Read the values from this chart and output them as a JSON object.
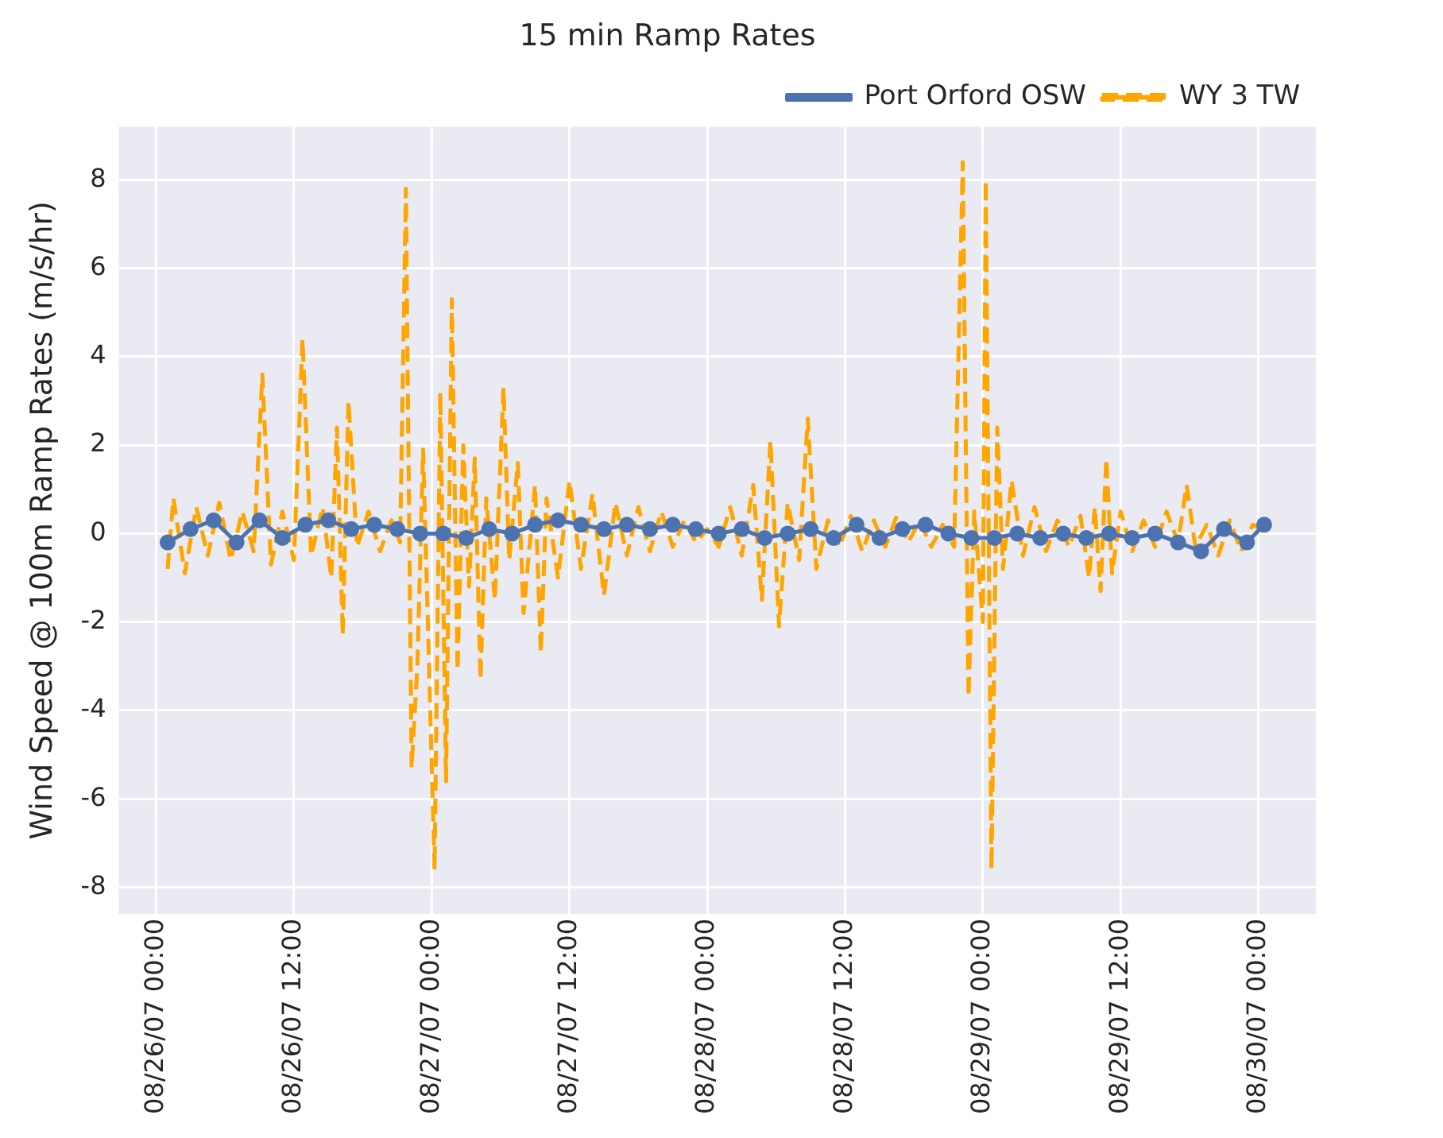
{
  "chart_data": {
    "type": "line",
    "title": "15 min Ramp Rates",
    "ylabel": "Wind Speed @ 100m Ramp Rates (m/s/hr)",
    "xlim": [
      "--08-25T20:45",
      "--08-30T05:00"
    ],
    "xticks": [
      {
        "value": "--08-26T00:00",
        "label": "08/26/07 00:00"
      },
      {
        "value": "--08-26T12:00",
        "label": "08/26/07 12:00"
      },
      {
        "value": "--08-27T00:00",
        "label": "08/27/07 00:00"
      },
      {
        "value": "--08-27T12:00",
        "label": "08/27/07 12:00"
      },
      {
        "value": "--08-28T00:00",
        "label": "08/28/07 00:00"
      },
      {
        "value": "--08-28T12:00",
        "label": "08/28/07 12:00"
      },
      {
        "value": "--08-29T00:00",
        "label": "08/29/07 00:00"
      },
      {
        "value": "--08-29T12:00",
        "label": "08/29/07 12:00"
      },
      {
        "value": "--08-30T00:00",
        "label": "08/30/07 00:00"
      }
    ],
    "ylim": [
      -8.6,
      9.2
    ],
    "yticks": [
      -8,
      -6,
      -4,
      -2,
      0,
      2,
      4,
      6,
      8
    ],
    "grid": true,
    "legend": "top right",
    "series": [
      {
        "name": "Port Orford OSW",
        "color": "#4c72b0",
        "marker": "circle",
        "line_style": "solid",
        "x": [
          "--08-26T01:00",
          "--08-26T03:00",
          "--08-26T05:00",
          "--08-26T07:00",
          "--08-26T09:00",
          "--08-26T11:00",
          "--08-26T13:00",
          "--08-26T15:00",
          "--08-26T17:00",
          "--08-26T19:00",
          "--08-26T21:00",
          "--08-26T23:00",
          "--08-27T01:00",
          "--08-27T03:00",
          "--08-27T05:00",
          "--08-27T07:00",
          "--08-27T09:00",
          "--08-27T11:00",
          "--08-27T13:00",
          "--08-27T15:00",
          "--08-27T17:00",
          "--08-27T19:00",
          "--08-27T21:00",
          "--08-27T23:00",
          "--08-28T01:00",
          "--08-28T03:00",
          "--08-28T05:00",
          "--08-28T07:00",
          "--08-28T09:00",
          "--08-28T11:00",
          "--08-28T13:00",
          "--08-28T15:00",
          "--08-28T17:00",
          "--08-28T19:00",
          "--08-28T21:00",
          "--08-28T23:00",
          "--08-29T01:00",
          "--08-29T03:00",
          "--08-29T05:00",
          "--08-29T07:00",
          "--08-29T09:00",
          "--08-29T11:00",
          "--08-29T13:00",
          "--08-29T15:00",
          "--08-29T17:00",
          "--08-29T19:00",
          "--08-29T21:00",
          "--08-29T23:00",
          "--08-30T00:30"
        ],
        "values": [
          -0.2,
          0.1,
          0.3,
          -0.2,
          0.3,
          -0.1,
          0.2,
          0.3,
          0.1,
          0.2,
          0.1,
          0.0,
          0.0,
          -0.1,
          0.1,
          0.0,
          0.2,
          0.3,
          0.2,
          0.1,
          0.2,
          0.1,
          0.2,
          0.1,
          0.0,
          0.1,
          -0.1,
          0.0,
          0.1,
          -0.1,
          0.2,
          -0.1,
          0.1,
          0.2,
          0.0,
          -0.1,
          -0.1,
          0.0,
          -0.1,
          0.0,
          -0.1,
          0.0,
          -0.1,
          0.0,
          -0.2,
          -0.4,
          0.1,
          -0.2,
          0.2
        ]
      },
      {
        "name": "WY 3 TW",
        "color": "#ffa500",
        "marker": "none",
        "line_style": "dashed",
        "x": [
          "--08-26T01:00",
          "--08-26T01:30",
          "--08-26T02:30",
          "--08-26T03:30",
          "--08-26T04:30",
          "--08-26T05:30",
          "--08-26T06:30",
          "--08-26T07:30",
          "--08-26T08:30",
          "--08-26T09:15",
          "--08-26T10:00",
          "--08-26T11:00",
          "--08-26T12:00",
          "--08-26T12:45",
          "--08-26T13:30",
          "--08-26T14:30",
          "--08-26T15:15",
          "--08-26T15:45",
          "--08-26T16:15",
          "--08-26T16:45",
          "--08-26T17:30",
          "--08-26T18:30",
          "--08-26T19:30",
          "--08-26T20:30",
          "--08-26T21:15",
          "--08-26T21:45",
          "--08-26T22:15",
          "--08-26T22:45",
          "--08-26T23:15",
          "--08-26T23:45",
          "--08-27T00:15",
          "--08-27T00:45",
          "--08-27T01:15",
          "--08-27T01:45",
          "--08-27T02:15",
          "--08-27T02:45",
          "--08-27T03:15",
          "--08-27T03:45",
          "--08-27T04:15",
          "--08-27T04:45",
          "--08-27T05:30",
          "--08-27T06:15",
          "--08-27T06:45",
          "--08-27T07:30",
          "--08-27T08:00",
          "--08-27T09:00",
          "--08-27T09:30",
          "--08-27T10:00",
          "--08-27T11:00",
          "--08-27T12:00",
          "--08-27T13:00",
          "--08-27T14:00",
          "--08-27T15:00",
          "--08-27T16:00",
          "--08-27T17:00",
          "--08-27T18:00",
          "--08-27T19:00",
          "--08-27T20:00",
          "--08-27T21:00",
          "--08-27T22:00",
          "--08-27T23:00",
          "--08-28T00:00",
          "--08-28T01:00",
          "--08-28T02:00",
          "--08-28T03:00",
          "--08-28T04:00",
          "--08-28T04:45",
          "--08-28T05:30",
          "--08-28T06:15",
          "--08-28T07:00",
          "--08-28T08:00",
          "--08-28T08:45",
          "--08-28T09:30",
          "--08-28T10:30",
          "--08-28T11:30",
          "--08-28T12:30",
          "--08-28T13:30",
          "--08-28T14:30",
          "--08-28T15:30",
          "--08-28T16:30",
          "--08-28T17:30",
          "--08-28T18:30",
          "--08-28T19:30",
          "--08-28T20:30",
          "--08-28T21:30",
          "--08-28T22:15",
          "--08-28T22:45",
          "--08-28T23:15",
          "--08-29T00:00",
          "--08-29T00:15",
          "--08-29T00:45",
          "--08-29T01:15",
          "--08-29T01:45",
          "--08-29T02:30",
          "--08-29T03:30",
          "--08-29T04:30",
          "--08-29T05:30",
          "--08-29T06:30",
          "--08-29T07:30",
          "--08-29T08:30",
          "--08-29T09:15",
          "--08-29T09:45",
          "--08-29T10:15",
          "--08-29T10:45",
          "--08-29T11:15",
          "--08-29T12:00",
          "--08-29T13:00",
          "--08-29T14:00",
          "--08-29T15:00",
          "--08-29T16:00",
          "--08-29T17:00",
          "--08-29T17:45",
          "--08-29T18:30",
          "--08-29T19:30",
          "--08-29T20:30",
          "--08-29T21:30",
          "--08-29T22:30",
          "--08-29T23:30",
          "--08-30T00:15"
        ],
        "values": [
          -0.8,
          0.8,
          -0.9,
          0.6,
          -0.5,
          0.7,
          -0.6,
          0.5,
          -0.4,
          3.6,
          -0.7,
          0.5,
          -0.6,
          4.4,
          -0.5,
          0.6,
          -1.0,
          2.4,
          -2.3,
          3.0,
          -0.3,
          0.5,
          -0.4,
          0.3,
          -0.2,
          7.8,
          -5.3,
          -3.0,
          1.9,
          -2.8,
          -7.6,
          3.2,
          -5.6,
          5.3,
          -3.1,
          2.0,
          -1.2,
          1.7,
          -3.3,
          0.8,
          -1.5,
          3.3,
          -0.6,
          1.6,
          -1.8,
          1.1,
          -2.7,
          0.8,
          -1.0,
          1.2,
          -0.8,
          0.9,
          -1.4,
          0.7,
          -0.5,
          0.6,
          -0.4,
          0.5,
          -0.3,
          0.3,
          -0.2,
          0.1,
          -0.3,
          0.6,
          -0.5,
          1.1,
          -1.5,
          2.1,
          -2.1,
          0.7,
          -0.6,
          2.6,
          -0.8,
          0.3,
          -0.3,
          0.4,
          -0.4,
          0.3,
          -0.3,
          0.4,
          -0.2,
          0.3,
          -0.3,
          0.2,
          -0.3,
          8.4,
          -3.7,
          0.5,
          -2.0,
          8.0,
          -7.6,
          2.4,
          -0.8,
          1.2,
          -0.5,
          0.6,
          -0.4,
          0.3,
          -0.3,
          0.4,
          -1.0,
          0.6,
          -1.3,
          1.7,
          -0.9,
          0.5,
          -0.4,
          0.3,
          -0.3,
          0.5,
          -0.2,
          1.1,
          -0.3,
          0.2,
          -0.5,
          0.3,
          -0.4,
          0.2,
          0.1
        ]
      }
    ]
  }
}
